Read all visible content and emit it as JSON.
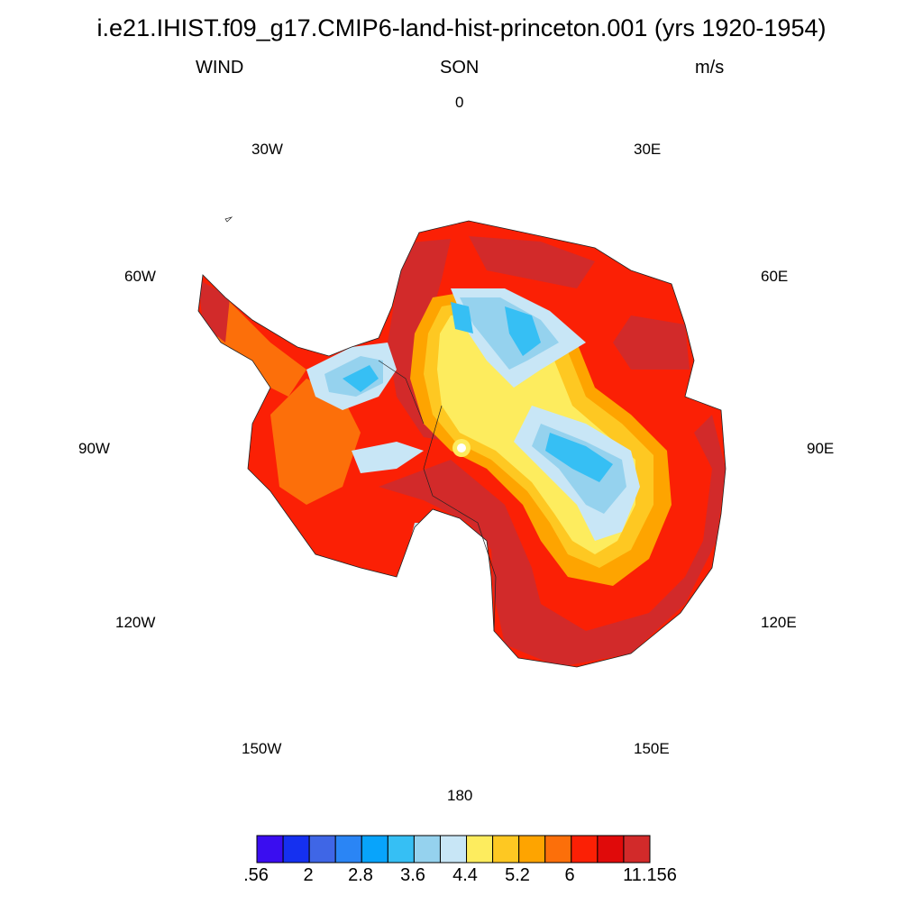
{
  "header": {
    "title": "i.e21.IHIST.f09_g17.CMIP6-land-hist-princeton.001 (yrs 1920-1954)",
    "left": "WIND",
    "center": "SON",
    "right": "m/s"
  },
  "map": {
    "projection": "south-polar-stereographic",
    "longitude_labels": [
      "0",
      "30E",
      "60E",
      "90E",
      "120E",
      "150E",
      "180",
      "150W",
      "120W",
      "90W",
      "60W",
      "30W"
    ]
  },
  "colorbar": {
    "colors": [
      "#3a0df0",
      "#1530f0",
      "#3f66e6",
      "#2a85f5",
      "#08a4fb",
      "#36bff4",
      "#95d2ee",
      "#c8e6f6",
      "#fdec5e",
      "#fec822",
      "#fea400",
      "#fc6f0a",
      "#fb2005",
      "#e00a0a",
      "#d22a2a"
    ],
    "tick_labels": [
      ".56",
      "2",
      "2.8",
      "3.6",
      "4.4",
      "5.2",
      "6",
      "11.156"
    ]
  }
}
